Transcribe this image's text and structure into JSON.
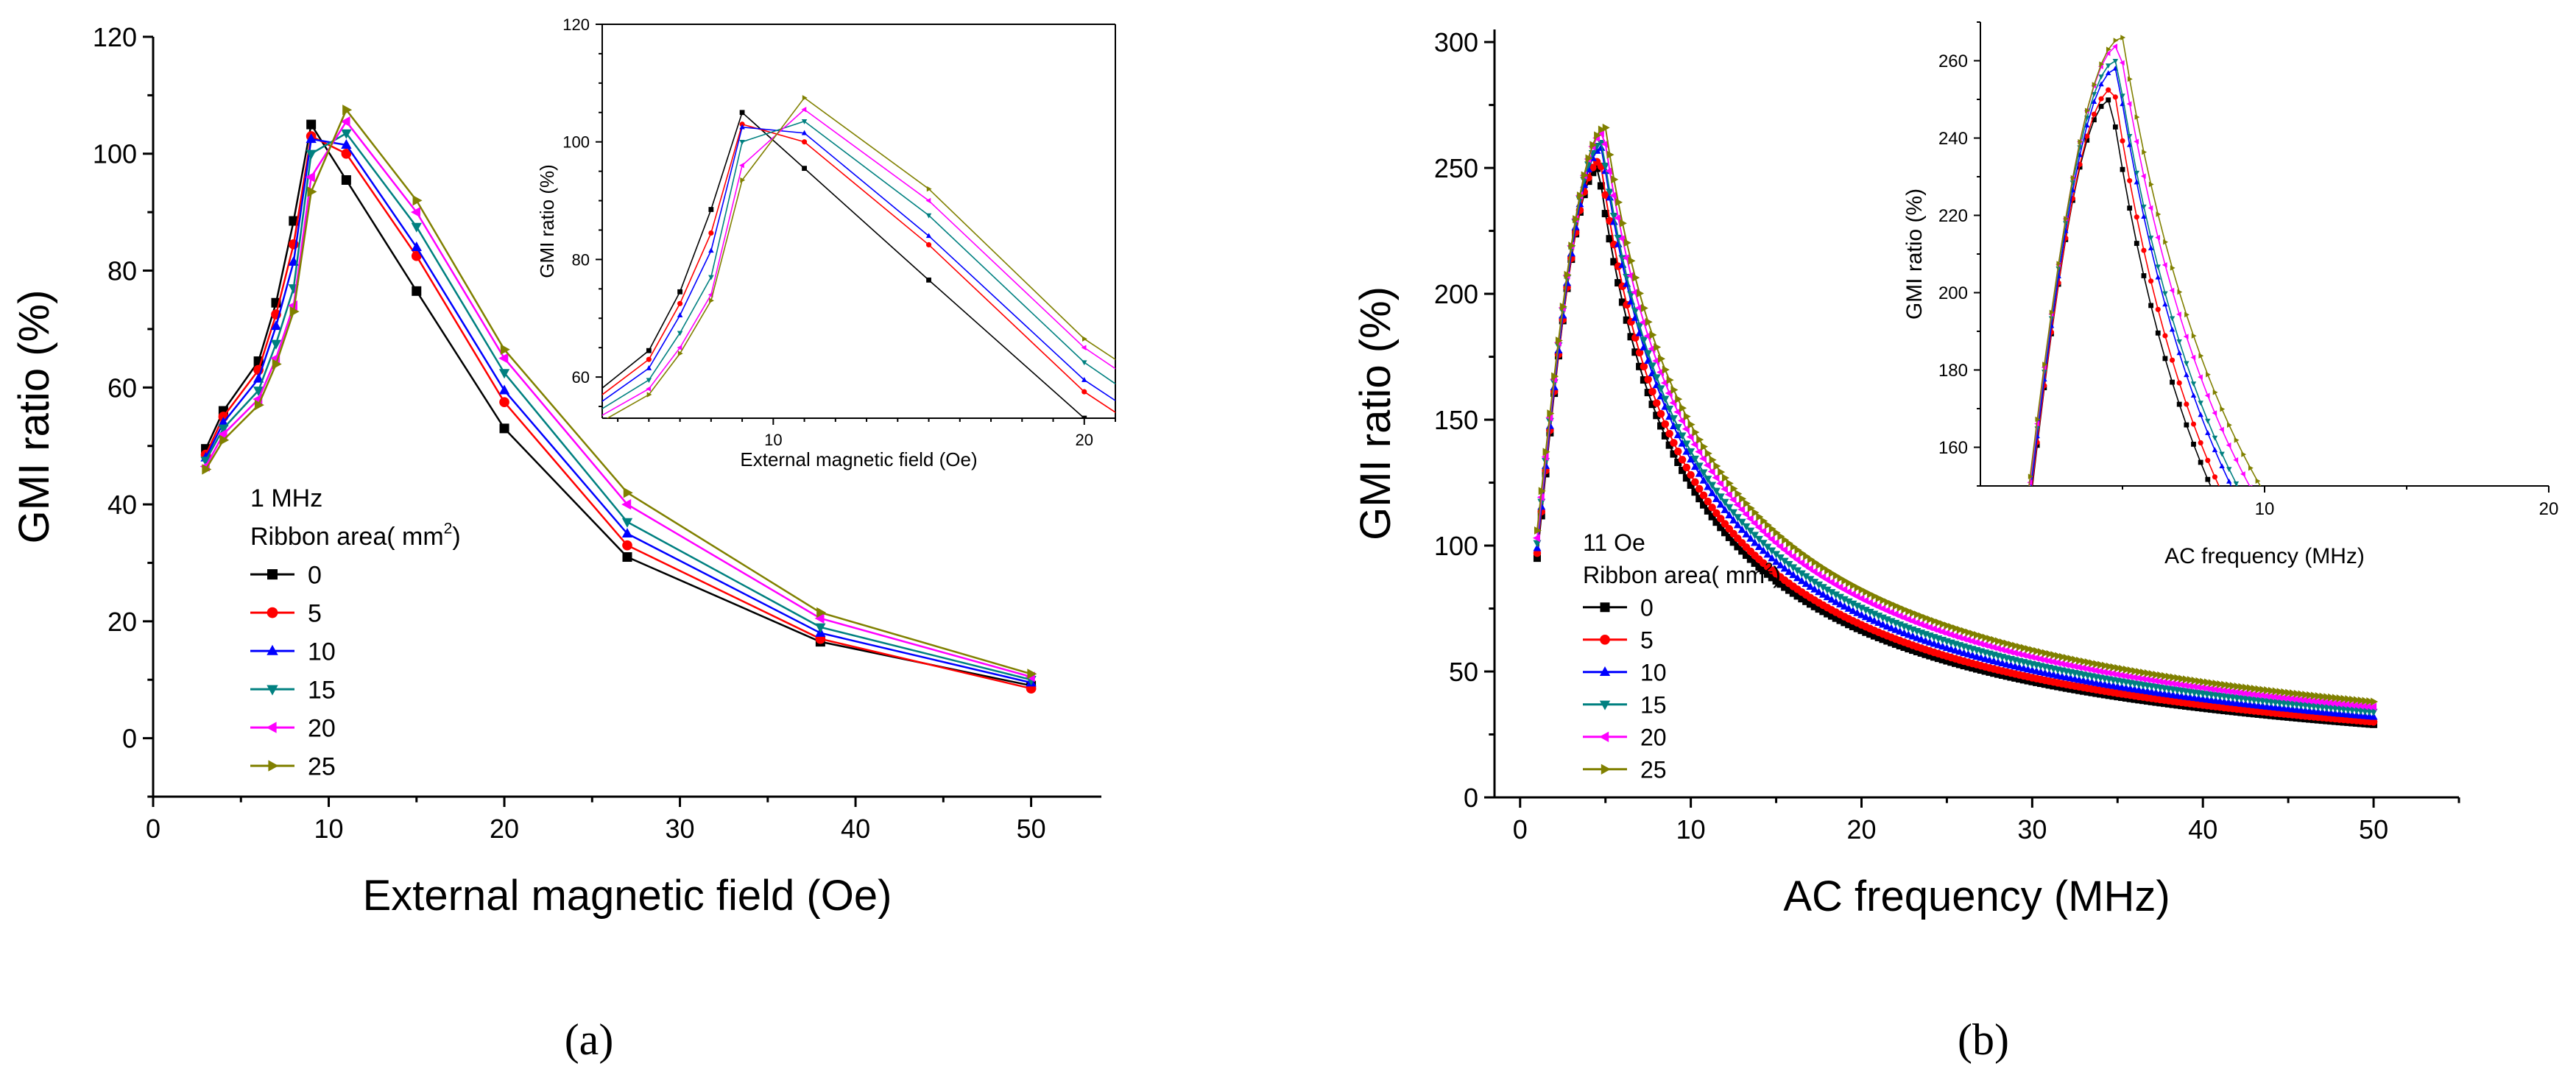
{
  "figure": {
    "panel_labels": [
      "(a)",
      "(b)"
    ]
  },
  "chart_data": [
    {
      "id": "a-main",
      "type": "line",
      "title": "",
      "xlabel": "External magnetic field (Oe)",
      "ylabel": "GMI ratio (%)",
      "xlim": [
        0,
        54
      ],
      "ylim": [
        -10,
        120
      ],
      "xticks": [
        0,
        10,
        20,
        30,
        40,
        50
      ],
      "yticks": [
        0,
        20,
        40,
        60,
        80,
        100,
        120
      ],
      "legend": {
        "location": "center-left",
        "header": "1 MHz",
        "title": "Ribbon area(  mm",
        "title_sup": "2",
        "title_end": ")"
      },
      "x": [
        3,
        4,
        6,
        7,
        8,
        9,
        11,
        15,
        20,
        27,
        38,
        50
      ],
      "series": [
        {
          "name": "0",
          "color": "#000000",
          "marker": "square",
          "values": [
            49.5,
            56.0,
            64.5,
            74.5,
            88.5,
            105.0,
            95.5,
            76.5,
            53.0,
            31.0,
            16.5,
            9.0
          ]
        },
        {
          "name": "5",
          "color": "#ff0000",
          "marker": "circle",
          "values": [
            48.5,
            55.0,
            63.0,
            72.5,
            84.5,
            103.0,
            100.0,
            82.5,
            57.5,
            33.0,
            17.0,
            8.5
          ]
        },
        {
          "name": "10",
          "color": "#0000ff",
          "marker": "triangle-up",
          "values": [
            48.0,
            54.0,
            61.5,
            70.5,
            81.5,
            102.5,
            101.5,
            84.0,
            59.5,
            35.0,
            18.0,
            9.5
          ]
        },
        {
          "name": "15",
          "color": "#008080",
          "marker": "triangle-down",
          "values": [
            47.5,
            53.0,
            59.5,
            67.5,
            77.0,
            100.0,
            103.5,
            87.5,
            62.5,
            37.0,
            19.0,
            10.0
          ]
        },
        {
          "name": "20",
          "color": "#ff00ff",
          "marker": "triangle-left",
          "values": [
            46.5,
            52.0,
            58.0,
            65.0,
            74.0,
            96.0,
            105.5,
            90.0,
            65.0,
            40.0,
            20.5,
            10.5
          ]
        },
        {
          "name": "25",
          "color": "#808000",
          "marker": "triangle-right",
          "values": [
            46.0,
            51.0,
            57.0,
            64.0,
            73.0,
            93.5,
            107.5,
            92.0,
            66.5,
            42.0,
            21.5,
            11.0
          ]
        }
      ]
    },
    {
      "id": "a-inset",
      "type": "line",
      "title": "",
      "xlabel": "External magnetic field (Oe)",
      "ylabel": "GMI ratio (%)",
      "xlim": [
        4.5,
        21
      ],
      "ylim": [
        53,
        120
      ],
      "xticks": [
        10,
        20
      ],
      "yticks": [
        60,
        80,
        100,
        120
      ],
      "x": [
        4,
        6,
        7,
        8,
        9,
        11,
        15,
        20,
        27
      ],
      "series_ref": "a-main",
      "note": "zoomed view of panel (a) data"
    },
    {
      "id": "b-main",
      "type": "line",
      "title": "",
      "xlabel": "AC frequency (MHz)",
      "ylabel": "GMI ratio (%)",
      "xlim": [
        -1.5,
        55
      ],
      "ylim": [
        0,
        305
      ],
      "xticks": [
        0,
        10,
        20,
        30,
        40,
        50
      ],
      "yticks": [
        0,
        50,
        100,
        150,
        200,
        250,
        300
      ],
      "legend": {
        "location": "center-left",
        "header": "11 Oe",
        "title": "Ribbon area(  mm",
        "title_sup": "2",
        "title_end": ")"
      },
      "curve_model": "piecewise: 95 at 1 MHz rising to peak at ~4.8 MHz, decaying to end value at 50 MHz",
      "series": [
        {
          "name": "0",
          "color": "#000000",
          "marker": "square",
          "start": 95,
          "peak_x": 4.6,
          "peak": 250,
          "end": 29
        },
        {
          "name": "5",
          "color": "#ff0000",
          "marker": "circle",
          "start": 97,
          "peak_x": 4.7,
          "peak": 253,
          "end": 30
        },
        {
          "name": "10",
          "color": "#0000ff",
          "marker": "triangle-up",
          "start": 99,
          "peak_x": 4.8,
          "peak": 258,
          "end": 32
        },
        {
          "name": "15",
          "color": "#008080",
          "marker": "triangle-down",
          "start": 101,
          "peak_x": 4.8,
          "peak": 260,
          "end": 34
        },
        {
          "name": "20",
          "color": "#ff00ff",
          "marker": "triangle-left",
          "start": 103,
          "peak_x": 4.9,
          "peak": 264,
          "end": 36
        },
        {
          "name": "25",
          "color": "#808000",
          "marker": "triangle-right",
          "start": 106,
          "peak_x": 5.0,
          "peak": 266,
          "end": 38
        }
      ]
    },
    {
      "id": "b-inset",
      "type": "line",
      "title": "",
      "xlabel": "AC frequency (MHz)",
      "ylabel": "GMI ratio  (%)",
      "xlim": [
        0,
        20
      ],
      "ylim": [
        150,
        270
      ],
      "xticks": [
        10,
        20
      ],
      "yticks": [
        160,
        180,
        200,
        220,
        240,
        260
      ],
      "series_ref": "b-main",
      "note": "zoomed view of panel (b) data"
    }
  ]
}
